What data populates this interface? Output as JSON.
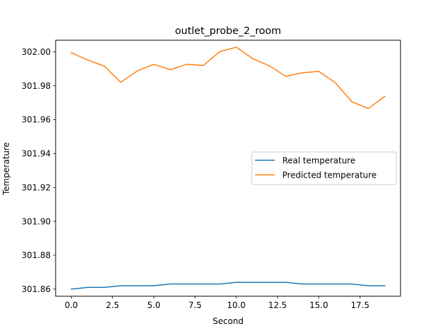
{
  "chart_data": {
    "type": "line",
    "title": "outlet_probe_2_room",
    "xlabel": "Second",
    "ylabel": "Temperature",
    "xlim": [
      -0.95,
      19.95
    ],
    "ylim": [
      301.8558,
      302.0069
    ],
    "xticks": [
      0.0,
      2.5,
      5.0,
      7.5,
      10.0,
      12.5,
      15.0,
      17.5
    ],
    "xtick_labels": [
      "0.0",
      "2.5",
      "5.0",
      "7.5",
      "10.0",
      "12.5",
      "15.0",
      "17.5"
    ],
    "yticks": [
      301.86,
      301.88,
      301.9,
      301.92,
      301.94,
      301.96,
      301.98,
      302.0
    ],
    "ytick_labels": [
      "301.86",
      "301.88",
      "301.90",
      "301.92",
      "301.94",
      "301.96",
      "301.98",
      "302.00"
    ],
    "x": [
      0,
      1,
      2,
      3,
      4,
      5,
      6,
      7,
      8,
      9,
      10,
      11,
      12,
      13,
      14,
      15,
      16,
      17,
      18,
      19
    ],
    "series": [
      {
        "name": "Real temperature",
        "color": "#1f77b4",
        "values": [
          301.86,
          301.861,
          301.861,
          301.862,
          301.862,
          301.862,
          301.863,
          301.863,
          301.863,
          301.863,
          301.864,
          301.864,
          301.864,
          301.864,
          301.863,
          301.863,
          301.863,
          301.863,
          301.862,
          301.862
        ]
      },
      {
        "name": "Predicted temperature",
        "color": "#ff7f0e",
        "values": [
          301.9995,
          301.9952,
          301.9916,
          301.9821,
          301.9888,
          301.9927,
          301.9895,
          301.9927,
          301.992,
          302.0002,
          302.0028,
          301.996,
          301.9918,
          301.9856,
          301.9877,
          301.9885,
          301.9818,
          301.9706,
          301.9666,
          301.9738
        ]
      }
    ],
    "legend_position": "center-right",
    "grid": false
  }
}
